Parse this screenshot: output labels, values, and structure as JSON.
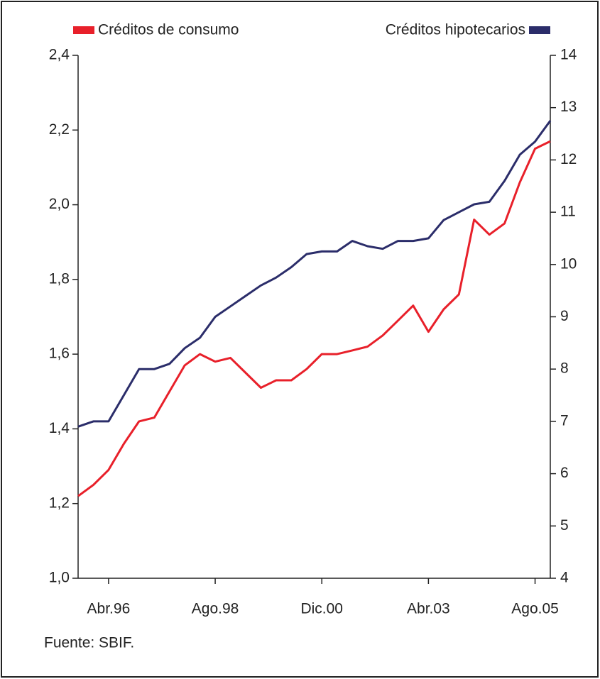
{
  "chart_data": {
    "type": "line",
    "categories": [
      null,
      null,
      "Abr.96",
      null,
      null,
      null,
      null,
      null,
      null,
      "Ago.98",
      null,
      null,
      null,
      null,
      null,
      null,
      "Dic.00",
      null,
      null,
      null,
      null,
      null,
      null,
      "Abr.03",
      null,
      null,
      null,
      null,
      null,
      null,
      "Ago.05",
      null
    ],
    "series": [
      {
        "name": "Créditos de consumo",
        "color": "#e8202a",
        "values": [
          1.22,
          1.25,
          1.29,
          1.36,
          1.42,
          1.43,
          1.5,
          1.57,
          1.6,
          1.58,
          1.59,
          1.55,
          1.51,
          1.53,
          1.53,
          1.56,
          1.6,
          1.6,
          1.61,
          1.62,
          1.65,
          1.69,
          1.73,
          1.66,
          1.72,
          1.76,
          1.96,
          1.92,
          1.95,
          2.06,
          2.15,
          2.17
        ]
      },
      {
        "name": "Créditos hipotecarios",
        "color": "#2b2d6a",
        "axis": "y2",
        "values": [
          6.9,
          7.0,
          7.0,
          7.5,
          8.0,
          8.0,
          8.1,
          8.4,
          8.6,
          9.0,
          9.2,
          9.4,
          9.6,
          9.75,
          9.95,
          10.2,
          10.25,
          10.25,
          10.45,
          10.35,
          10.3,
          10.45,
          10.45,
          10.5,
          10.85,
          11.0,
          11.15,
          11.2,
          11.6,
          12.1,
          12.35,
          12.75
        ]
      }
    ],
    "ylim": [
      1.0,
      2.4
    ],
    "yticks": [
      {
        "value": 1.0,
        "label": "1,0"
      },
      {
        "value": 1.2,
        "label": "1,2"
      },
      {
        "value": 1.4,
        "label": "1,4"
      },
      {
        "value": 1.6,
        "label": "1,6"
      },
      {
        "value": 1.8,
        "label": "1,8"
      },
      {
        "value": 2.0,
        "label": "2,0"
      },
      {
        "value": 2.2,
        "label": "2,2"
      },
      {
        "value": 2.4,
        "label": "2,4"
      }
    ],
    "y2lim": [
      4,
      14
    ],
    "y2ticks": [
      4,
      5,
      6,
      7,
      8,
      9,
      10,
      11,
      12,
      13,
      14
    ],
    "source": "Fuente: SBIF."
  }
}
